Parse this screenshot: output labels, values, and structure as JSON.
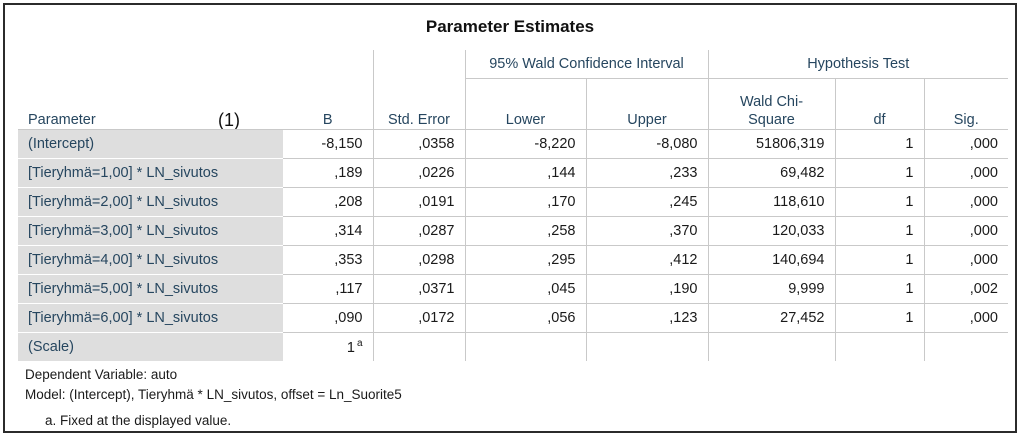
{
  "table": {
    "title": "Parameter Estimates",
    "annotation": "(1)",
    "group_headers": {
      "wald_ci": "95% Wald Confidence Interval",
      "hypothesis_test": "Hypothesis Test"
    },
    "columns": {
      "parameter": "Parameter",
      "b": "B",
      "std_error": "Std. Error",
      "lower": "Lower",
      "upper": "Upper",
      "wald_chi_square": "Wald Chi-Square",
      "df": "df",
      "sig": "Sig."
    },
    "rows": [
      {
        "parameter": "(Intercept)",
        "b": "-8,150",
        "std_error": ",0358",
        "lower": "-8,220",
        "upper": "-8,080",
        "wald": "51806,319",
        "df": "1",
        "sig": ",000"
      },
      {
        "parameter": "[Tieryhmä=1,00] * LN_sivutos",
        "b": ",189",
        "std_error": ",0226",
        "lower": ",144",
        "upper": ",233",
        "wald": "69,482",
        "df": "1",
        "sig": ",000"
      },
      {
        "parameter": "[Tieryhmä=2,00] * LN_sivutos",
        "b": ",208",
        "std_error": ",0191",
        "lower": ",170",
        "upper": ",245",
        "wald": "118,610",
        "df": "1",
        "sig": ",000"
      },
      {
        "parameter": "[Tieryhmä=3,00] * LN_sivutos",
        "b": ",314",
        "std_error": ",0287",
        "lower": ",258",
        "upper": ",370",
        "wald": "120,033",
        "df": "1",
        "sig": ",000"
      },
      {
        "parameter": "[Tieryhmä=4,00] * LN_sivutos",
        "b": ",353",
        "std_error": ",0298",
        "lower": ",295",
        "upper": ",412",
        "wald": "140,694",
        "df": "1",
        "sig": ",000"
      },
      {
        "parameter": "[Tieryhmä=5,00] * LN_sivutos",
        "b": ",117",
        "std_error": ",0371",
        "lower": ",045",
        "upper": ",190",
        "wald": "9,999",
        "df": "1",
        "sig": ",002"
      },
      {
        "parameter": "[Tieryhmä=6,00] * LN_sivutos",
        "b": ",090",
        "std_error": ",0172",
        "lower": ",056",
        "upper": ",123",
        "wald": "27,452",
        "df": "1",
        "sig": ",000"
      }
    ],
    "scale_row": {
      "parameter": "(Scale)",
      "b": "1",
      "b_superscript": "a"
    },
    "footnotes": {
      "dependent_variable": "Dependent Variable: auto",
      "model": "Model: (Intercept), Tieryhmä * LN_sivutos, offset = Ln_Suorite5",
      "note_a": "a. Fixed at the displayed value."
    }
  }
}
